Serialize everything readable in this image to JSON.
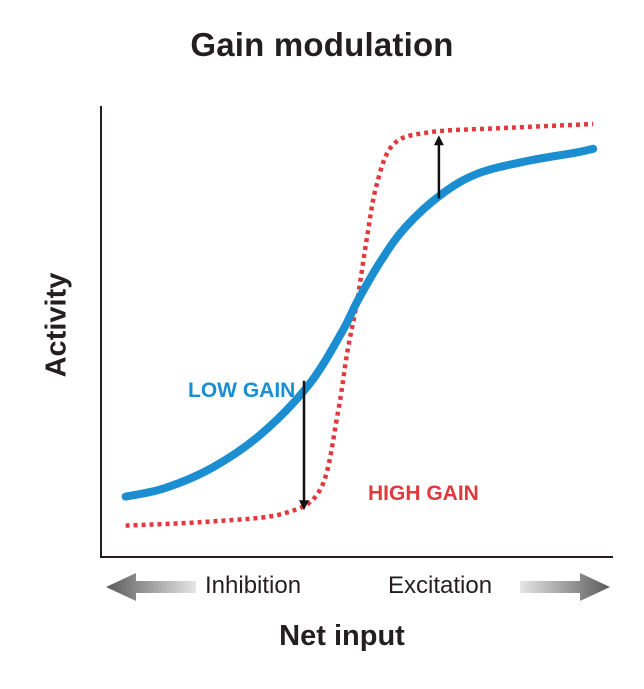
{
  "chart_data": {
    "type": "line",
    "title": "Gain modulation",
    "xlabel": "Net input",
    "ylabel": "Activity",
    "x_direction_labels": {
      "left": "Inhibition",
      "right": "Excitation"
    },
    "xlim": [
      -1,
      1
    ],
    "ylim": [
      0,
      1
    ],
    "series": [
      {
        "name": "LOW GAIN",
        "color": "#1a8ed1",
        "style": "solid",
        "x": [
          -0.96,
          -0.8,
          -0.6,
          -0.4,
          -0.2,
          -0.06,
          0.0,
          0.1,
          0.2,
          0.35,
          0.5,
          0.7,
          0.9,
          0.98
        ],
        "y": [
          0.1,
          0.12,
          0.17,
          0.25,
          0.37,
          0.5,
          0.57,
          0.67,
          0.75,
          0.83,
          0.88,
          0.91,
          0.93,
          0.94
        ]
      },
      {
        "name": "HIGH GAIN",
        "color": "#e03a3e",
        "style": "dotted",
        "x": [
          -0.96,
          -0.6,
          -0.3,
          -0.15,
          -0.08,
          -0.04,
          0.0,
          0.04,
          0.08,
          0.15,
          0.3,
          0.6,
          0.98
        ],
        "y": [
          0.03,
          0.04,
          0.06,
          0.12,
          0.3,
          0.45,
          0.57,
          0.72,
          0.85,
          0.95,
          0.98,
          0.99,
          1.0
        ]
      }
    ],
    "annotations": [
      {
        "type": "arrow",
        "x": -0.22,
        "from_y": 0.38,
        "to_y": 0.06,
        "direction": "down"
      },
      {
        "type": "arrow",
        "x": 0.34,
        "from_y": 0.82,
        "to_y": 0.98,
        "direction": "up"
      }
    ],
    "legend": "inline labels"
  }
}
